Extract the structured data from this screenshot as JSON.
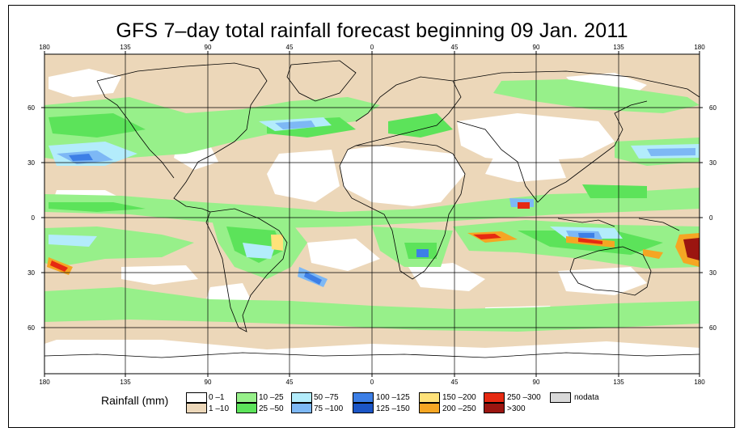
{
  "title": "GFS 7–day total rainfall forecast beginning 09 Jan. 2011",
  "axes": {
    "lon_labels": [
      "180",
      "135",
      "90",
      "45",
      "0",
      "45",
      "90",
      "135",
      "180"
    ],
    "lat_labels": [
      "60",
      "30",
      "0",
      "30",
      "60"
    ]
  },
  "legend": {
    "title": "Rainfall (mm)",
    "items": [
      {
        "label": "0 –1",
        "color": "#ffffff"
      },
      {
        "label": "1 –10",
        "color": "#ecd7b9"
      },
      {
        "label": "10 –25",
        "color": "#97f08a"
      },
      {
        "label": "25 –50",
        "color": "#5ce35a"
      },
      {
        "label": "50 –75",
        "color": "#b3ecfb"
      },
      {
        "label": "75 –100",
        "color": "#7db8f5"
      },
      {
        "label": "100 –125",
        "color": "#3d7fe6"
      },
      {
        "label": "125 –150",
        "color": "#1b55c6"
      },
      {
        "label": "150 –200",
        "color": "#ffe27a"
      },
      {
        "label": "200 –250",
        "color": "#f5a623"
      },
      {
        "label": "250 –300",
        "color": "#e62a12"
      },
      {
        "label": ">300",
        "color": "#9b1510"
      },
      {
        "label": "nodata",
        "color": "#d9d9d9"
      }
    ]
  },
  "colors": {
    "ocean_low": "#ecd7b9",
    "dry": "#ffffff",
    "coast": "#000000"
  }
}
